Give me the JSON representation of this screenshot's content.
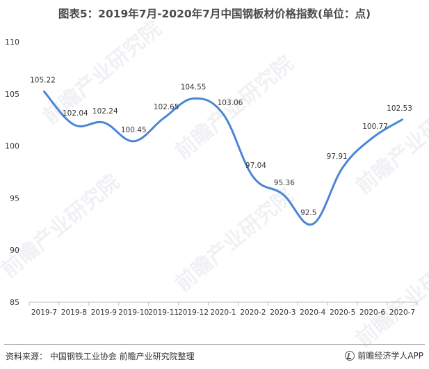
{
  "title": "图表5：2019年7月-2020年7月中国钢板材价格指数(单位：点)",
  "source": "资料来源：   中国钢铁工业协会 前瞻产业研究院整理",
  "brand": "前瞻经济学人APP",
  "watermark": "前瞻产业研究院",
  "colors": {
    "line": "#4a86d4",
    "axis": "#bfbfbf",
    "text": "#333333"
  },
  "chart_data": {
    "type": "line",
    "categories": [
      "2019-7",
      "2019-8",
      "2019-9",
      "2019-10",
      "2019-11",
      "2019-12",
      "2020-1",
      "2020-2",
      "2020-3",
      "2020-4",
      "2020-5",
      "2020-6",
      "2020-7"
    ],
    "series": [
      {
        "values": [
          105.22,
          102.04,
          102.24,
          100.45,
          102.65,
          104.55,
          103.06,
          97.04,
          95.36,
          92.5,
          97.91,
          100.77,
          102.53
        ]
      }
    ],
    "labels": [
      "105.22",
      "102.04",
      "102.24",
      "100.45",
      "102.65",
      "104.55",
      "103.06",
      "97.04",
      "95.36",
      "92.5",
      "97.91",
      "100.77",
      "102.53"
    ],
    "ylim": [
      85,
      110
    ],
    "yticks": [
      85,
      90,
      95,
      100,
      105,
      110
    ],
    "xlabel": "",
    "ylabel": ""
  }
}
